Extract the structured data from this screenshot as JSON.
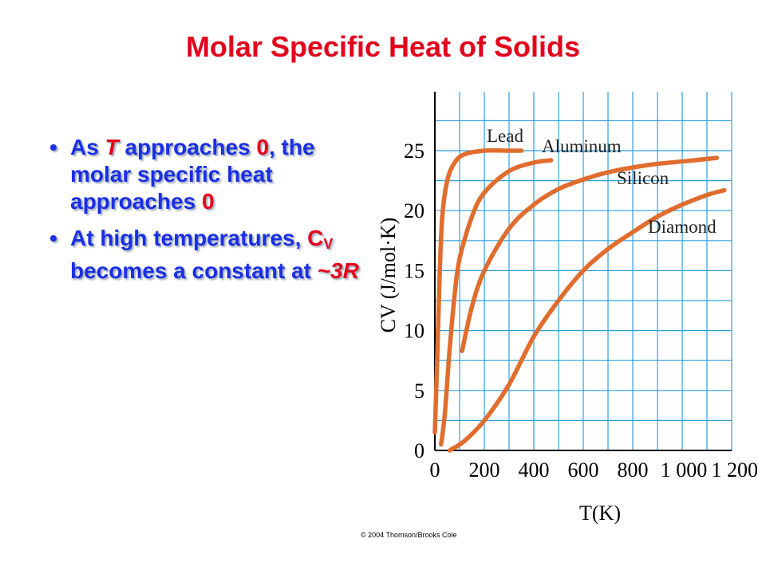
{
  "slide": {
    "title": "Molar Specific Heat of Solids",
    "copyright": "© 2004 Thomson/Brooks Cole"
  },
  "bullets": [
    {
      "pre": "As ",
      "T": "T",
      "mid": "  approaches ",
      "zero": "0",
      "post": ", the molar specific heat approaches ",
      "zero2": "0"
    },
    {
      "pre": "At high temperatures, ",
      "C": "C",
      "sub": "V",
      "mid": " becomes a constant at ",
      "val": "~3R"
    }
  ],
  "colors": {
    "title": "#e3001b",
    "bullet": "#1a2fe6",
    "highlight": "#e3001b",
    "grid": "#2fa0df",
    "curve": "#e06d2e"
  },
  "chart_data": {
    "type": "line",
    "xlabel": "T(K)",
    "ylabel": "C_V (J/mol·K)",
    "xlim": [
      0,
      1200
    ],
    "ylim": [
      0,
      30
    ],
    "grid": true,
    "x_ticks": [
      "0",
      "200",
      "400",
      "600",
      "800",
      "1 000",
      "1 200"
    ],
    "y_ticks": [
      "0",
      "5",
      "10",
      "15",
      "20",
      "25"
    ],
    "series": [
      {
        "name": "Lead",
        "points": [
          [
            0,
            1.5
          ],
          [
            10,
            8
          ],
          [
            20,
            15
          ],
          [
            30,
            19.5
          ],
          [
            50,
            22.5
          ],
          [
            80,
            24
          ],
          [
            120,
            24.7
          ],
          [
            200,
            25
          ],
          [
            300,
            25
          ],
          [
            350,
            25
          ]
        ]
      },
      {
        "name": "Aluminum",
        "points": [
          [
            25,
            0.5
          ],
          [
            40,
            3
          ],
          [
            60,
            8.5
          ],
          [
            80,
            13
          ],
          [
            100,
            16
          ],
          [
            150,
            19.5
          ],
          [
            200,
            21.5
          ],
          [
            300,
            23.3
          ],
          [
            400,
            24
          ],
          [
            470,
            24.2
          ]
        ]
      },
      {
        "name": "Silicon",
        "points": [
          [
            110,
            8.3
          ],
          [
            150,
            12
          ],
          [
            200,
            15
          ],
          [
            300,
            18.5
          ],
          [
            400,
            20.5
          ],
          [
            500,
            21.8
          ],
          [
            600,
            22.6
          ],
          [
            700,
            23.2
          ],
          [
            800,
            23.6
          ],
          [
            900,
            23.9
          ],
          [
            1050,
            24.2
          ],
          [
            1140,
            24.4
          ]
        ]
      },
      {
        "name": "Diamond",
        "points": [
          [
            60,
            0
          ],
          [
            120,
            0.8
          ],
          [
            200,
            2.5
          ],
          [
            300,
            5.5
          ],
          [
            400,
            9.5
          ],
          [
            500,
            12.5
          ],
          [
            600,
            15
          ],
          [
            700,
            16.8
          ],
          [
            800,
            18.2
          ],
          [
            900,
            19.5
          ],
          [
            1000,
            20.5
          ],
          [
            1100,
            21.3
          ],
          [
            1170,
            21.7
          ]
        ]
      }
    ]
  }
}
